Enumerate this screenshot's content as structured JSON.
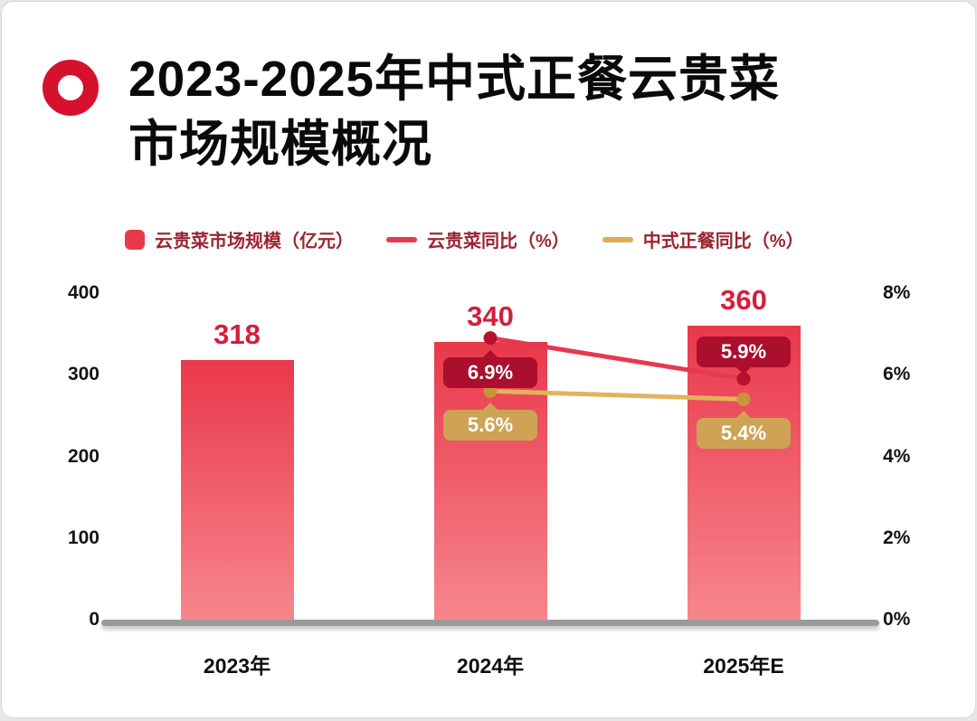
{
  "page": {
    "background": "#e7e7e7",
    "card_background": "#ffffff",
    "accent_color": "#d5112c"
  },
  "header": {
    "title_line1": "2023-2025年中式正餐云贵菜",
    "title_line2": "市场规模概况",
    "logo": "red-ring-icon"
  },
  "legend": {
    "text_color": "#9a2530",
    "items": [
      {
        "label": "云贵菜市场规模（亿元）",
        "swatch": "bar",
        "color": "#e93a4c"
      },
      {
        "label": "云贵菜同比（%）",
        "swatch": "line",
        "color": "#e63950"
      },
      {
        "label": "中式正餐同比（%）",
        "swatch": "line",
        "color": "#ddab56"
      }
    ]
  },
  "chart_data": {
    "type": "combo-bar-line",
    "title": "2023-2025年中式正餐云贵菜市场规模概况",
    "categories": [
      "2023年",
      "2024年",
      "2025年E"
    ],
    "bar_series": {
      "name": "云贵菜市场规模（亿元）",
      "values": [
        318,
        340,
        360
      ],
      "value_labels": [
        "318",
        "340",
        "360"
      ],
      "color_top": "#e9384b",
      "color_bottom": "#f7868c",
      "label_color": "#d41f3c"
    },
    "line_series": [
      {
        "name": "云贵菜同比（%）",
        "color": "#e63950",
        "dot_color": "#b8112f",
        "pill_color": "#ac0e2e",
        "points": [
          {
            "category_index": 1,
            "value": 6.9,
            "label": "6.9%",
            "label_pos": "below"
          },
          {
            "category_index": 2,
            "value": 5.9,
            "label": "5.9%",
            "label_pos": "above"
          }
        ]
      },
      {
        "name": "中式正餐同比（%）",
        "color": "#e3b25c",
        "dot_color": "#c8963a",
        "pill_color": "#cfa355",
        "points": [
          {
            "category_index": 1,
            "value": 5.6,
            "label": "5.6%",
            "label_pos": "below"
          },
          {
            "category_index": 2,
            "value": 5.4,
            "label": "5.4%",
            "label_pos": "below"
          }
        ]
      }
    ],
    "left_axis": {
      "min": 0,
      "max": 400,
      "tick_values": [
        400,
        300,
        200,
        100,
        0
      ],
      "tick_labels": [
        "400",
        "300",
        "200",
        "100",
        "0"
      ]
    },
    "right_axis": {
      "min": 0,
      "max": 8,
      "tick_values": [
        8,
        6,
        4,
        2,
        0
      ],
      "tick_labels": [
        "8%",
        "6%",
        "4%",
        "2%",
        "0%"
      ]
    },
    "grid": false,
    "legend_position": "top"
  }
}
